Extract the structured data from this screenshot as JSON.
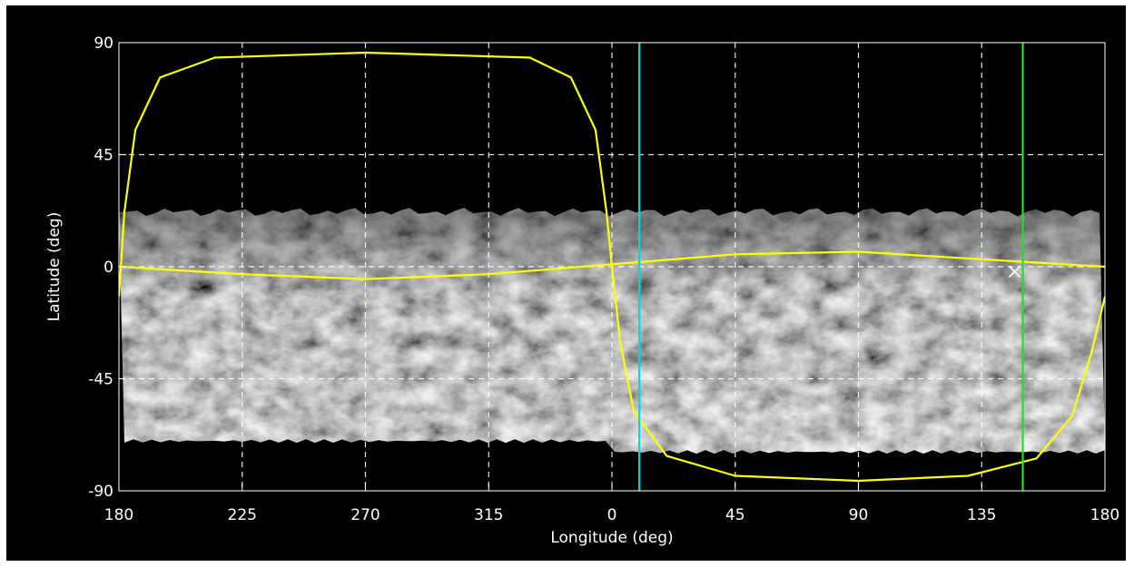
{
  "map": {
    "x_axis_title": "Longitude (deg)",
    "y_axis_title": "Latitude (deg)",
    "x_tick_labels": [
      "180",
      "225",
      "270",
      "315",
      "0",
      "45",
      "90",
      "135",
      "180"
    ],
    "y_tick_labels": [
      "90",
      "45",
      "0",
      "-45",
      "-90"
    ],
    "x_tick_values": [
      180,
      225,
      270,
      315,
      360,
      405,
      450,
      495,
      540
    ],
    "y_tick_values": [
      90,
      45,
      0,
      -45,
      -90
    ],
    "x_range": [
      180,
      540
    ],
    "y_range": [
      -90,
      90
    ],
    "grid": true,
    "colors": {
      "background": "#000000",
      "frame_outer": "#ffffff",
      "text": "#ffffff",
      "grid": "#ffffff",
      "ground_track": "#ffff00",
      "cyan_line": "#00d8e0",
      "green_line": "#19e619",
      "marker": "#ffffff"
    },
    "surface_coverage_lat": [
      -70,
      22
    ],
    "cyan_meridian_lon": 10,
    "green_meridian_lon": 150,
    "marker": {
      "lon": 147,
      "lat": -2,
      "symbol": "×"
    },
    "equatorial_track": [
      {
        "lon": 180,
        "lat": 0
      },
      {
        "lon": 225,
        "lat": -3
      },
      {
        "lon": 270,
        "lat": -5
      },
      {
        "lon": 315,
        "lat": -3
      },
      {
        "lon": 0,
        "lat": 1
      },
      {
        "lon": 45,
        "lat": 5
      },
      {
        "lon": 90,
        "lat": 6
      },
      {
        "lon": 135,
        "lat": 3
      },
      {
        "lon": 180,
        "lat": 0
      }
    ],
    "polar_track": [
      {
        "lon": 180,
        "lat": -12
      },
      {
        "lon": 182,
        "lat": 22
      },
      {
        "lon": 186,
        "lat": 55
      },
      {
        "lon": 195,
        "lat": 76
      },
      {
        "lon": 215,
        "lat": 84
      },
      {
        "lon": 270,
        "lat": 86
      },
      {
        "lon": 330,
        "lat": 84
      },
      {
        "lon": 345,
        "lat": 76
      },
      {
        "lon": 354,
        "lat": 55
      },
      {
        "lon": 358,
        "lat": 22
      },
      {
        "lon": 0,
        "lat": 0
      },
      {
        "lon": 3,
        "lat": -30
      },
      {
        "lon": 8,
        "lat": -58
      },
      {
        "lon": 20,
        "lat": -76
      },
      {
        "lon": 45,
        "lat": -84
      },
      {
        "lon": 90,
        "lat": -86
      },
      {
        "lon": 130,
        "lat": -84
      },
      {
        "lon": 155,
        "lat": -77
      },
      {
        "lon": 168,
        "lat": -60
      },
      {
        "lon": 175,
        "lat": -35
      },
      {
        "lon": 180,
        "lat": -12
      }
    ]
  }
}
